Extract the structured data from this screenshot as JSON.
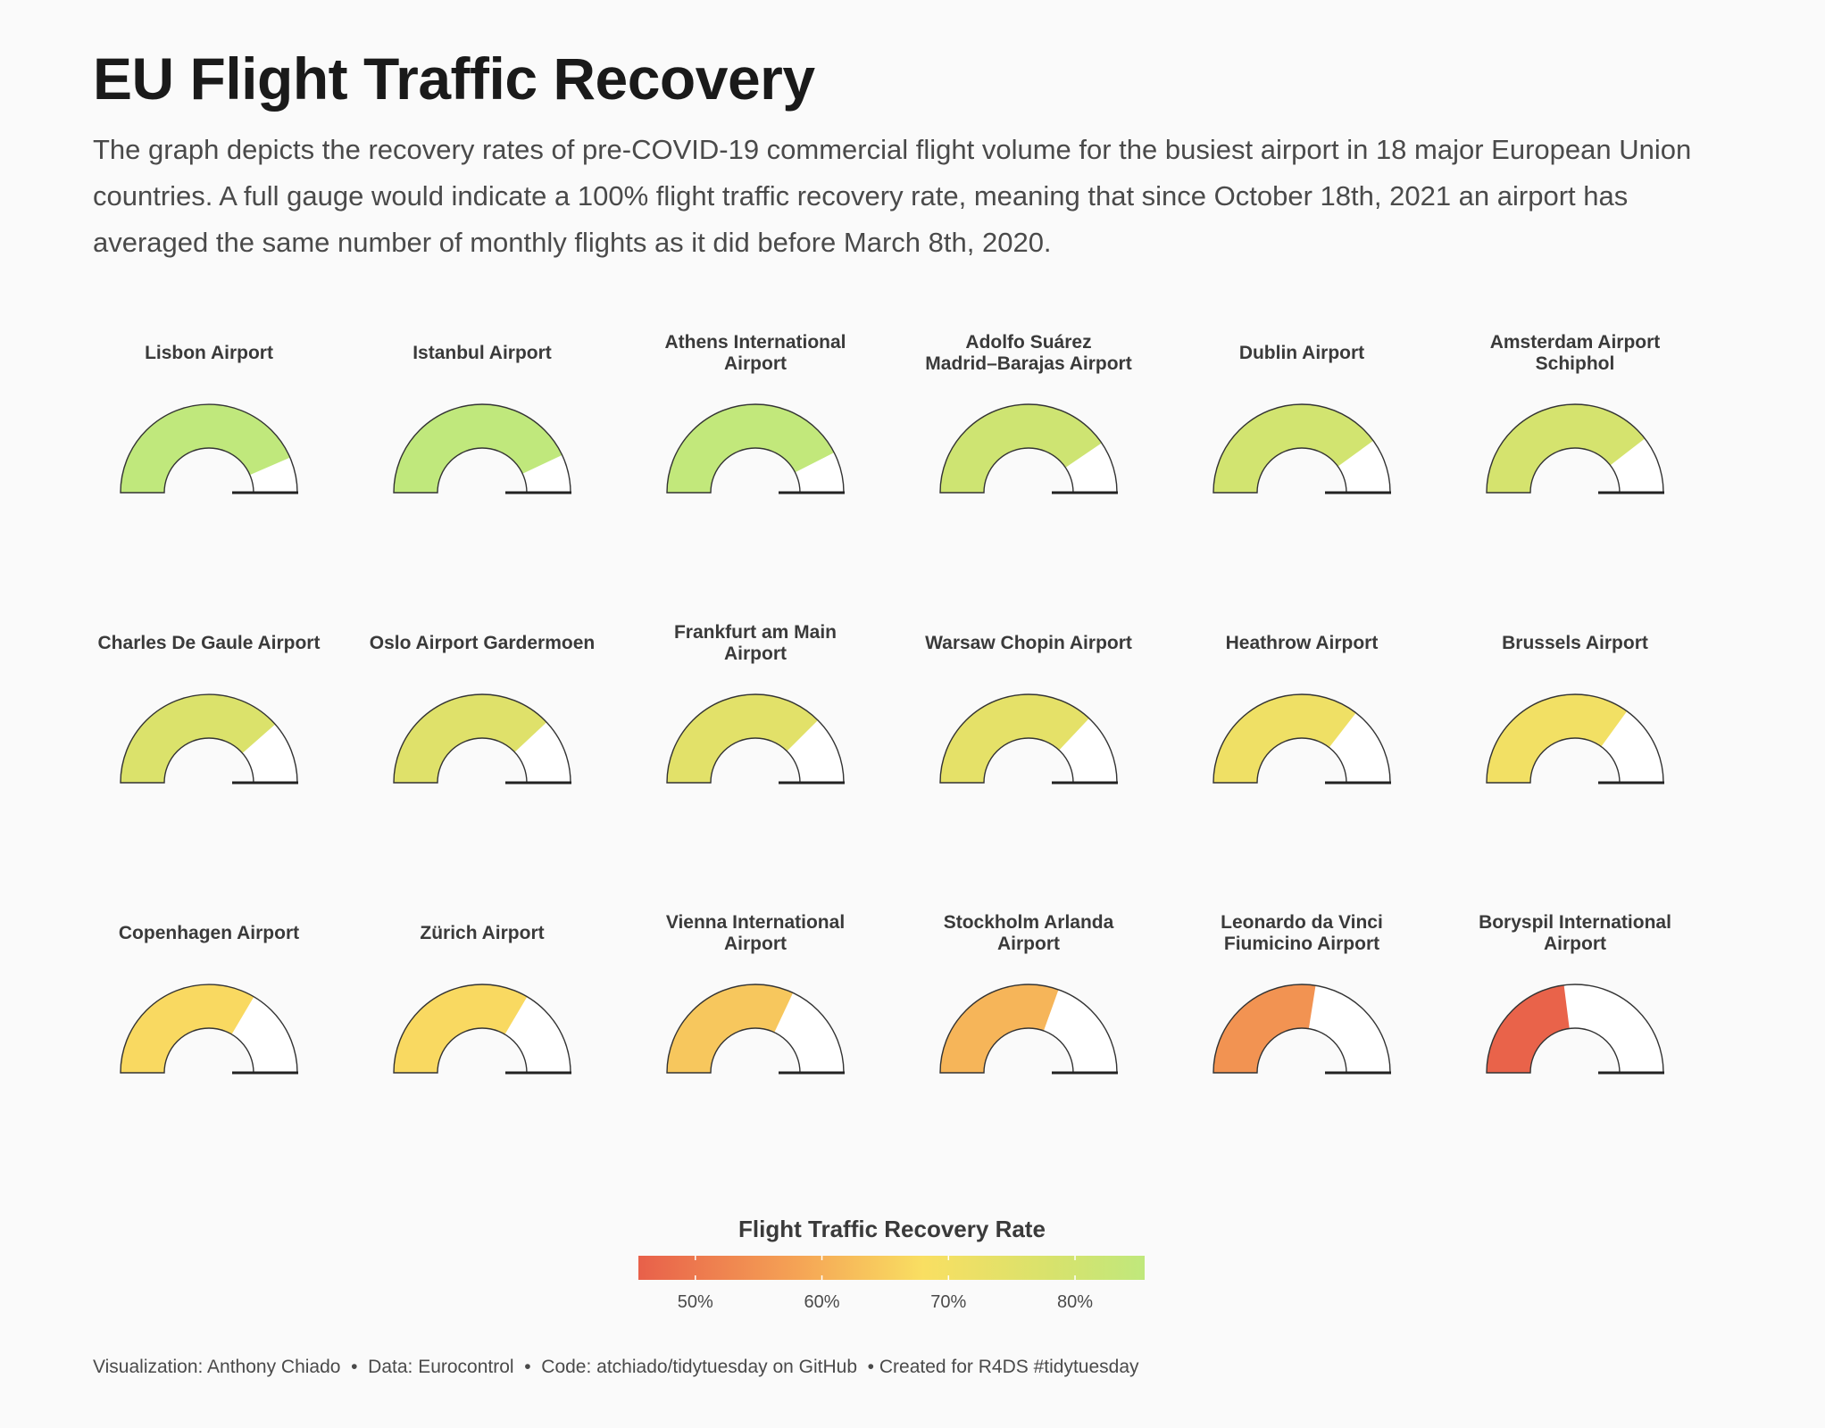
{
  "title": "EU Flight Traffic Recovery",
  "subtitle": "The graph depicts the recovery rates of pre-COVID-19 commercial flight volume for the busiest airport in 18 major European Union countries. A full gauge would indicate a 100% flight traffic recovery rate, meaning that since October 18th, 2021 an airport has averaged the same number of monthly flights as it did before March 8th, 2020.",
  "chart_data": {
    "type": "gauge",
    "value_unit": "fraction of pre-COVID flight volume",
    "gauges": [
      {
        "label": [
          "Lisbon Airport"
        ],
        "value": 0.87
      },
      {
        "label": [
          "Istanbul Airport"
        ],
        "value": 0.86
      },
      {
        "label": [
          "Athens International",
          "Airport"
        ],
        "value": 0.85
      },
      {
        "label": [
          "Adolfo Suárez",
          "Madrid–Barajas Airport"
        ],
        "value": 0.81
      },
      {
        "label": [
          "Dublin Airport"
        ],
        "value": 0.8
      },
      {
        "label": [
          "Amsterdam Airport",
          "Schiphol"
        ],
        "value": 0.79
      },
      {
        "label": [
          "Charles De Gaule Airport"
        ],
        "value": 0.77
      },
      {
        "label": [
          "Oslo Airport Gardermoen"
        ],
        "value": 0.76
      },
      {
        "label": [
          "Frankfurt am Main",
          "Airport"
        ],
        "value": 0.75
      },
      {
        "label": [
          "Warsaw Chopin Airport"
        ],
        "value": 0.74
      },
      {
        "label": [
          "Heathrow Airport"
        ],
        "value": 0.71
      },
      {
        "label": [
          "Brussels Airport"
        ],
        "value": 0.7
      },
      {
        "label": [
          "Copenhagen Airport"
        ],
        "value": 0.67
      },
      {
        "label": [
          "Zürich Airport"
        ],
        "value": 0.67
      },
      {
        "label": [
          "Vienna International",
          "Airport"
        ],
        "value": 0.64
      },
      {
        "label": [
          "Stockholm Arlanda",
          "Airport"
        ],
        "value": 0.61
      },
      {
        "label": [
          "Leonardo da Vinci",
          "Fiumicino Airport"
        ],
        "value": 0.55
      },
      {
        "label": [
          "Boryspil International",
          "Airport"
        ],
        "value": 0.46
      }
    ],
    "legend": {
      "title": "Flight Traffic Recovery Rate",
      "range": [
        0.455,
        0.855
      ],
      "ticks": [
        "50%",
        "60%",
        "70%",
        "80%"
      ],
      "tick_values": [
        0.5,
        0.6,
        0.7,
        0.8
      ],
      "color_stops": [
        {
          "value": 0.455,
          "color": "#e8604a"
        },
        {
          "value": 0.58,
          "color": "#f5a355"
        },
        {
          "value": 0.68,
          "color": "#f9df62"
        },
        {
          "value": 0.78,
          "color": "#d8e26c"
        },
        {
          "value": 0.855,
          "color": "#c0e87c"
        }
      ]
    },
    "empty_color": "#ffffff",
    "outline_color": "#333333"
  },
  "caption": [
    "Visualization: Anthony Chiado",
    "  •  Data: Eurocontrol",
    "  •  Code: atchiado/tidytuesday on GitHub",
    "  • Created for R4DS #tidytuesday"
  ]
}
